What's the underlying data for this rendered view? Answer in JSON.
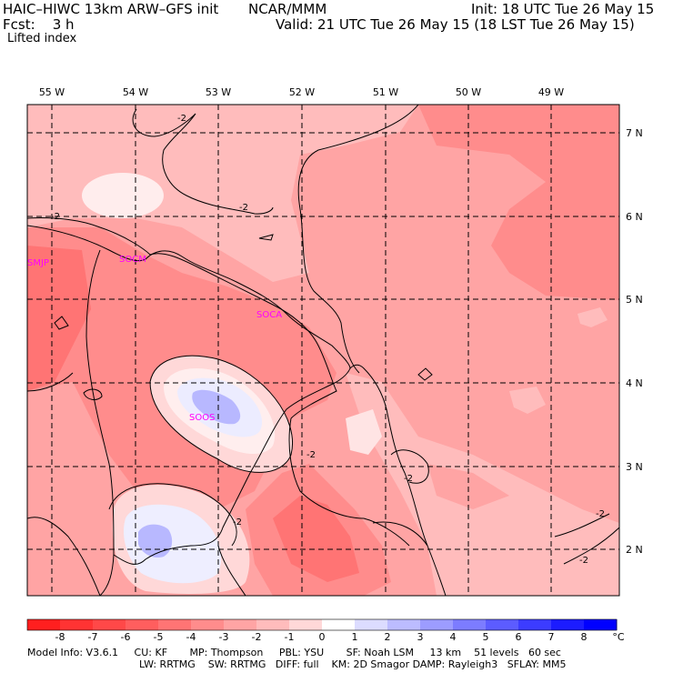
{
  "header": {
    "model": "HAIC–HIWC 13km ARW–GFS init",
    "org": "NCAR/MMM",
    "fcst": "Fcst:    3 h",
    "init": "Init: 18 UTC Tue 26 May 15",
    "valid": "Valid: 21 UTC Tue 26 May 15 (18 LST Tue 26 May 15)",
    "field": "Lifted index"
  },
  "longitudes": [
    "55 W",
    "54 W",
    "53 W",
    "52 W",
    "51 W",
    "50 W",
    "49 W"
  ],
  "latitudes": [
    "7 N",
    "6 N",
    "5 N",
    "4 N",
    "3 N",
    "2 N"
  ],
  "stations": [
    "SMJP",
    "SOCM",
    "SOCA",
    "SOOS"
  ],
  "contour_labels": [
    "-2",
    "-2",
    "-2",
    "-2",
    "-2",
    "-2",
    "-2",
    "-2"
  ],
  "colorbar": {
    "labels": [
      "-8",
      "-7",
      "-6",
      "-5",
      "-4",
      "-3",
      "-2",
      "-1",
      "0",
      "1",
      "2",
      "3",
      "4",
      "5",
      "6",
      "7",
      "8"
    ],
    "unit": "°C",
    "colors": [
      "#ff1f1f",
      "#ff3333",
      "#ff4848",
      "#ff5e5e",
      "#ff7474",
      "#ff8c8c",
      "#ffa4a4",
      "#ffbcbc",
      "#ffd8d8",
      "#ffffff",
      "#dcdcff",
      "#bcbcff",
      "#9c9cff",
      "#7c7cff",
      "#5c5cff",
      "#3c3cff",
      "#1c1cff",
      "#0000ff"
    ]
  },
  "model_info": {
    "line1": "Model Info: V3.6.1     CU: KF       MP: Thompson     PBL: YSU       SF: Noah LSM     13 km    51 levels   60 sec",
    "line2": "LW: RRTMG    SW: RRTMG   DIFF: full    KM: 2D Smagor DAMP: Rayleigh3   SFLAY: MM5"
  }
}
